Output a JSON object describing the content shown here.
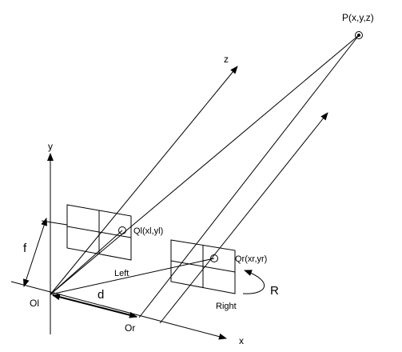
{
  "labels": {
    "point_p": "P(x,y,z)",
    "axis_z": "z",
    "axis_y": "y",
    "axis_x": "x",
    "focal": "f",
    "origin_left": "Ol",
    "origin_right": "Or",
    "baseline": "d",
    "image_left": "Left",
    "image_right": "Right",
    "point_ql": "Ql(xl,yl)",
    "point_qr": "Qr(xr,yr)",
    "rotation": "R"
  }
}
